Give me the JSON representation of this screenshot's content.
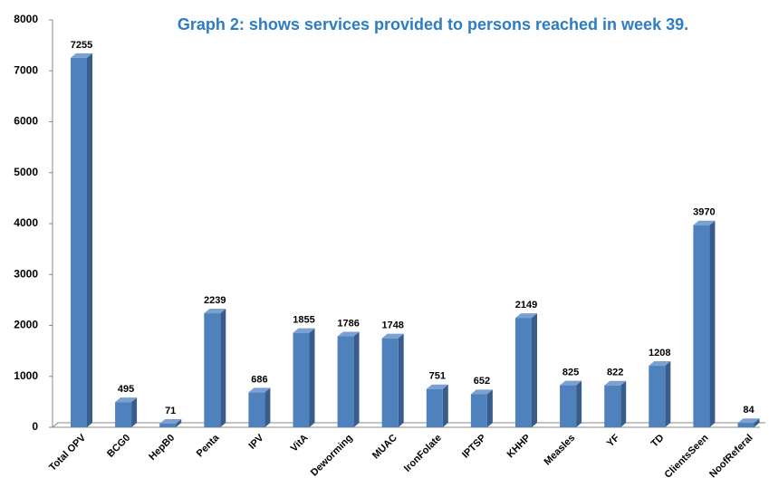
{
  "chart_data": {
    "type": "bar",
    "title": "Graph 2: shows services provided to persons reached in week 39.",
    "categories": [
      "Total OPV",
      "BCG0",
      "HepB0",
      "Penta",
      "IPV",
      "VitA",
      "Deworming",
      "MUAC",
      "IronFolate",
      "IPTSP",
      "KHHP",
      "Measles",
      "YF",
      "TD",
      "ClientsSeen",
      "NoofReferal"
    ],
    "values": [
      7255,
      495,
      71,
      2239,
      686,
      1855,
      1786,
      1748,
      751,
      652,
      2149,
      825,
      822,
      1208,
      3970,
      84
    ],
    "color": "#4f81bd",
    "ylim": [
      0,
      8000
    ],
    "yticks": [
      0,
      1000,
      2000,
      3000,
      4000,
      5000,
      6000,
      7000,
      8000
    ],
    "grid": false
  }
}
